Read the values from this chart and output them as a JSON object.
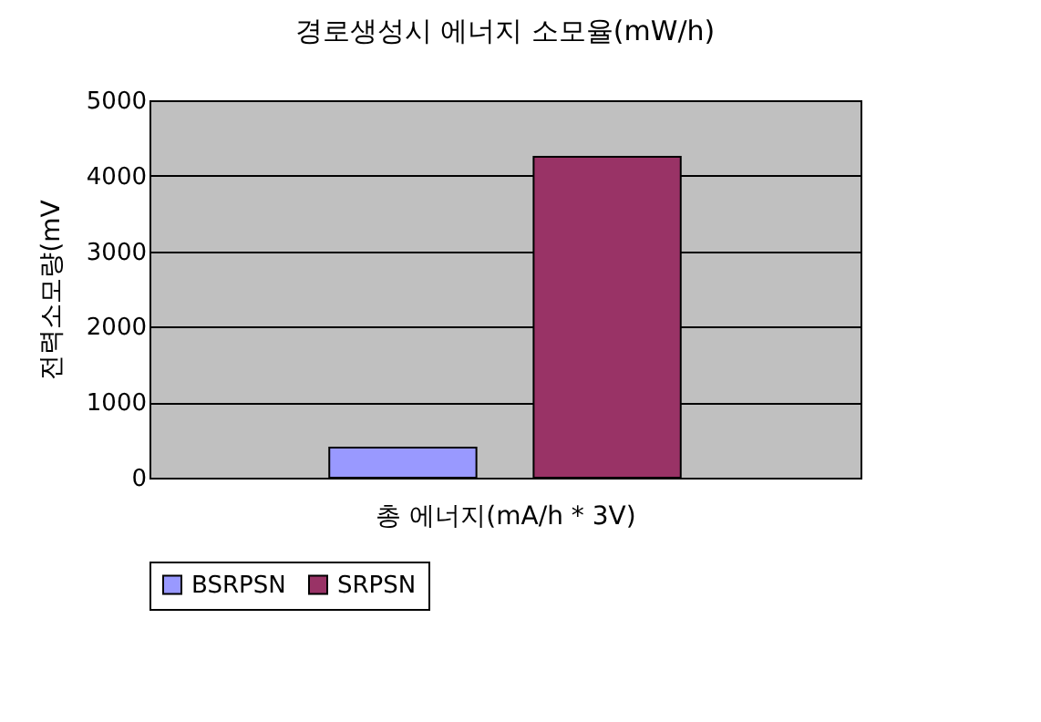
{
  "chart_data": {
    "type": "bar",
    "title": "경로생성시 에너지 소모율(mW/h)",
    "xlabel": "총 에너지(mA/h * 3V)",
    "ylabel": "전력소모량(mV",
    "categories": [
      null
    ],
    "series": [
      {
        "name": "BSRPSN",
        "color": "#9999ff",
        "values": [
          400
        ]
      },
      {
        "name": "SRPSN",
        "color": "#993366",
        "values": [
          4250
        ]
      }
    ],
    "ylim": [
      0,
      5000
    ],
    "yticks": [
      0,
      1000,
      2000,
      3000,
      4000,
      5000
    ],
    "grid": "y",
    "legend": "bottom"
  }
}
